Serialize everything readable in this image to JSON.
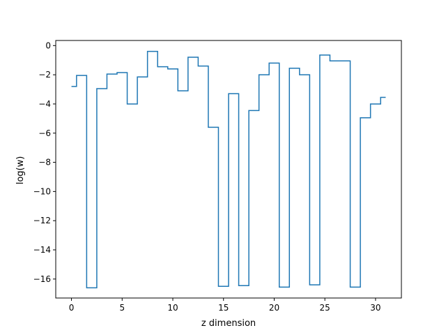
{
  "chart_data": {
    "type": "line",
    "drawstyle": "steps-mid",
    "title": "",
    "xlabel": "z dimension",
    "ylabel": "log(w)",
    "xlim": [
      -1.55,
      32.55
    ],
    "ylim": [
      -17.3,
      0.35
    ],
    "xticks": [
      0,
      5,
      10,
      15,
      20,
      25,
      30
    ],
    "yticks": [
      0,
      -2,
      -4,
      -6,
      -8,
      -10,
      -12,
      -14,
      -16
    ],
    "grid": false,
    "legend": "none",
    "colors": {
      "line": "#1f77b4",
      "axes": "#000000",
      "background": "#ffffff"
    },
    "series": [
      {
        "x": [
          0,
          1,
          2,
          3,
          4,
          5,
          6,
          7,
          8,
          9,
          10,
          11,
          12,
          13,
          14,
          15,
          16,
          17,
          18,
          19,
          20,
          21,
          22,
          23,
          24,
          25,
          26,
          27,
          28,
          29,
          30,
          31
        ],
        "y": [
          -2.8,
          -2.05,
          -16.6,
          -2.95,
          -1.95,
          -1.85,
          -4.0,
          -2.15,
          -0.4,
          -1.45,
          -1.6,
          -3.1,
          -0.8,
          -1.4,
          -5.6,
          -16.5,
          -3.3,
          -16.45,
          -4.45,
          -2.0,
          -1.2,
          -16.55,
          -1.55,
          -2.0,
          -16.4,
          -0.65,
          -1.05,
          -1.05,
          -16.55,
          -4.95,
          -4.0,
          -3.55
        ]
      }
    ]
  }
}
